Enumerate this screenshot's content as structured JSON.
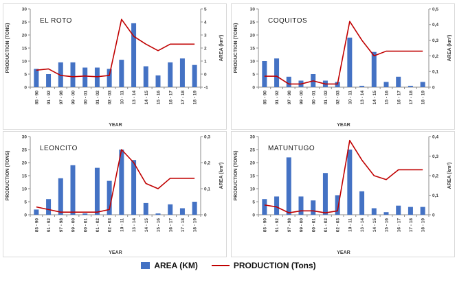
{
  "colors": {
    "bar": "#4472C4",
    "line": "#C00000",
    "axis": "#8c8c8c",
    "border": "#d9d9d9"
  },
  "legend": {
    "items": [
      {
        "label": "AREA (KM)",
        "swatch": "bar",
        "color": "#4472C4"
      },
      {
        "label": "PRODUCTION (Tons)",
        "swatch": "line",
        "color": "#C00000"
      }
    ]
  },
  "chart_data": [
    {
      "type": "bar",
      "title": "EL ROTO",
      "xlabel": "YEAR",
      "categories": [
        "85 - 90",
        "91 - 92",
        "97 - 98",
        "99 - 00",
        "00 - 01",
        "01 - 02",
        "02 - 03",
        "10 - 11",
        "13 - 14",
        "14 - 15",
        "15 - 16",
        "16 - 17",
        "17 - 18",
        "18 - 19"
      ],
      "left_axis": {
        "label": "PRODUCTION (TONS)",
        "min": 0,
        "max": 30,
        "ticks": [
          0,
          5,
          10,
          15,
          20,
          25,
          30
        ],
        "tick_labels": [
          "0",
          "5",
          "10",
          "15",
          "20",
          "25",
          "30"
        ]
      },
      "right_axis": {
        "label": "AREA (km²)",
        "min": -1,
        "max": 5,
        "ticks": [
          -1,
          0,
          1,
          2,
          3,
          4,
          5
        ],
        "tick_labels": [
          "-1",
          "0",
          "1",
          "2",
          "3",
          "4",
          "5"
        ]
      },
      "series": [
        {
          "name": "AREA (KM)",
          "type": "bar",
          "axis": "left",
          "values": [
            7,
            5,
            9.5,
            9.5,
            7.5,
            7.5,
            7,
            10.5,
            24.5,
            8,
            4.5,
            9.5,
            11,
            8.5
          ]
        },
        {
          "name": "PRODUCTION (Tons)",
          "type": "line",
          "axis": "right",
          "values": [
            0.3,
            0.4,
            -0.1,
            -0.2,
            -0.15,
            -0.2,
            -0.1,
            4.2,
            2.9,
            2.3,
            1.8,
            2.3,
            2.3,
            2.3
          ]
        }
      ]
    },
    {
      "type": "bar",
      "title": "COQUITOS",
      "xlabel": "YEAR",
      "categories": [
        "85 - 90",
        "91 - 92",
        "97 - 98",
        "99 - 00",
        "00 - 01",
        "01 - 02",
        "02 - 03",
        "10 - 11",
        "13 - 14",
        "14 - 15",
        "15 - 16",
        "16 - 17",
        "17 - 18",
        "18 - 19"
      ],
      "left_axis": {
        "label": "PRODUCTION (TONS)",
        "min": 0,
        "max": 30,
        "ticks": [
          0,
          5,
          10,
          15,
          20,
          25,
          30
        ],
        "tick_labels": [
          "0",
          "5",
          "10",
          "15",
          "20",
          "25",
          "30"
        ]
      },
      "right_axis": {
        "label": "AREA (km²)",
        "min": 0,
        "max": 0.5,
        "ticks": [
          0,
          0.1,
          0.2,
          0.3,
          0.4,
          0.5
        ],
        "tick_labels": [
          "0",
          "0,1",
          "0,2",
          "0,3",
          "0,4",
          "0,5"
        ]
      },
      "series": [
        {
          "name": "AREA (KM)",
          "type": "bar",
          "axis": "left",
          "values": [
            10,
            11,
            4,
            2.5,
            5,
            2.5,
            2,
            19,
            0.5,
            13.5,
            2,
            4,
            0.5,
            2
          ]
        },
        {
          "name": "PRODUCTION (Tons)",
          "type": "line",
          "axis": "right",
          "values": [
            0.07,
            0.07,
            0.02,
            0.02,
            0.04,
            0.02,
            0.02,
            0.42,
            0.3,
            0.2,
            0.23,
            0.23,
            0.23,
            0.23
          ]
        }
      ]
    },
    {
      "type": "bar",
      "title": "LEONCITO",
      "xlabel": "YEAR",
      "categories": [
        "85 - 90",
        "91 - 92",
        "97 - 98",
        "99 - 00",
        "00 - 01",
        "01 - 02",
        "02 - 03",
        "10 - 11",
        "13 - 14",
        "14 - 15",
        "15 - 16",
        "16 - 17",
        "17 - 18",
        "18 - 19"
      ],
      "left_axis": {
        "label": "PRODUCTION (TONS)",
        "min": 0,
        "max": 30,
        "ticks": [
          0,
          5,
          10,
          15,
          20,
          25,
          30
        ],
        "tick_labels": [
          "0",
          "5",
          "10",
          "15",
          "20",
          "25",
          "30"
        ]
      },
      "right_axis": {
        "label": "AREA (km²)",
        "min": 0,
        "max": 0.3,
        "ticks": [
          0,
          0.1,
          0.2,
          0.3
        ],
        "tick_labels": [
          "0",
          "0,1",
          "0,2",
          "0,3"
        ]
      },
      "series": [
        {
          "name": "AREA (KM)",
          "type": "bar",
          "axis": "left",
          "values": [
            2,
            6,
            14,
            19,
            0.5,
            18,
            13,
            25,
            21,
            4.5,
            0.5,
            4,
            2.5,
            5
          ]
        },
        {
          "name": "PRODUCTION (Tons)",
          "type": "line",
          "axis": "right",
          "values": [
            0.03,
            0.02,
            0.01,
            0.01,
            0.01,
            0.01,
            0.02,
            0.25,
            0.2,
            0.12,
            0.1,
            0.14,
            0.14,
            0.14
          ]
        }
      ]
    },
    {
      "type": "bar",
      "title": "MATUNTUGO",
      "xlabel": "YEAR",
      "categories": [
        "85 - 90",
        "91 - 92",
        "97 - 98",
        "99 - 00",
        "00 - 01",
        "01 - 02",
        "02 - 03",
        "10 - 11",
        "13 - 14",
        "14 - 15",
        "15 - 16",
        "16 - 17",
        "17 - 18",
        "18 - 19"
      ],
      "left_axis": {
        "label": "PRODUCTION (TONS)",
        "min": 0,
        "max": 30,
        "ticks": [
          0,
          5,
          10,
          15,
          20,
          25,
          30
        ],
        "tick_labels": [
          "0",
          "5",
          "10",
          "15",
          "20",
          "25",
          "30"
        ]
      },
      "right_axis": {
        "label": "AREA (km²)",
        "min": 0,
        "max": 0.4,
        "ticks": [
          0,
          0.1,
          0.2,
          0.3,
          0.4
        ],
        "tick_labels": [
          "0",
          "0,1",
          "0,2",
          "0,3",
          "0,4"
        ]
      },
      "series": [
        {
          "name": "AREA (KM)",
          "type": "bar",
          "axis": "left",
          "values": [
            6,
            7,
            22,
            7,
            5.5,
            16,
            7.5,
            25,
            9,
            2.5,
            1,
            3.5,
            3,
            3
          ]
        },
        {
          "name": "PRODUCTION (Tons)",
          "type": "line",
          "axis": "right",
          "values": [
            0.05,
            0.04,
            0.01,
            0.02,
            0.02,
            0.01,
            0.02,
            0.38,
            0.28,
            0.2,
            0.18,
            0.23,
            0.23,
            0.23
          ]
        }
      ]
    }
  ]
}
